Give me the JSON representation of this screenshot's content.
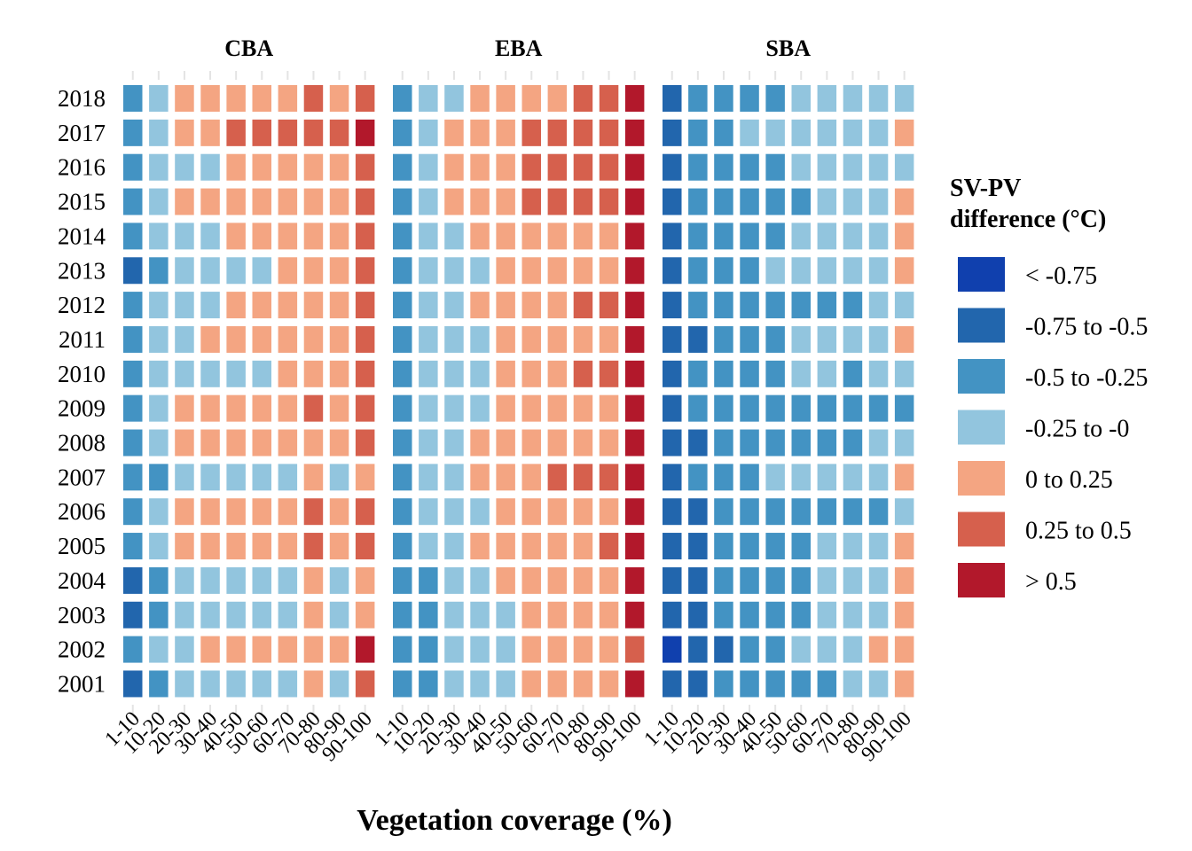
{
  "chart_data": {
    "type": "heatmap",
    "title": "",
    "xlabel": "Vegetation coverage (%)",
    "ylabel": "",
    "grid": false,
    "legend_placement": "right",
    "panels": [
      "CBA",
      "EBA",
      "SBA"
    ],
    "x_categories": [
      "1-10",
      "10-20",
      "20-30",
      "30-40",
      "40-50",
      "50-60",
      "60-70",
      "70-80",
      "80-90",
      "90-100"
    ],
    "y_categories": [
      "2018",
      "2017",
      "2016",
      "2015",
      "2014",
      "2013",
      "2012",
      "2011",
      "2010",
      "2009",
      "2008",
      "2007",
      "2006",
      "2005",
      "2004",
      "2003",
      "2002",
      "2001"
    ],
    "legend": {
      "title_line1": "SV-PV",
      "title_line2": "difference (°C)",
      "classes": [
        {
          "label": "< -0.75",
          "color": "#1040ae"
        },
        {
          "label": "-0.75 to -0.5",
          "color": "#2266ad"
        },
        {
          "label": "-0.5 to -0.25",
          "color": "#4393c3"
        },
        {
          "label": "-0.25 to -0",
          "color": "#92c5de"
        },
        {
          "label": "0 to 0.25",
          "color": "#f4a582"
        },
        {
          "label": "0.25 to 0.5",
          "color": "#d6604d"
        },
        {
          "label": "> 0.5",
          "color": "#b2182b"
        }
      ]
    },
    "value_encoding": "class index into legend.classes (0 = < -0.75 ... 6 = > 0.5)",
    "values": {
      "CBA": [
        [
          2,
          3,
          4,
          4,
          4,
          4,
          4,
          5,
          4,
          5
        ],
        [
          2,
          3,
          4,
          4,
          5,
          5,
          5,
          5,
          5,
          6
        ],
        [
          2,
          3,
          3,
          3,
          4,
          4,
          4,
          4,
          4,
          5
        ],
        [
          2,
          3,
          4,
          4,
          4,
          4,
          4,
          4,
          4,
          5
        ],
        [
          2,
          3,
          3,
          3,
          4,
          4,
          4,
          4,
          4,
          5
        ],
        [
          1,
          2,
          3,
          3,
          3,
          3,
          4,
          4,
          4,
          5
        ],
        [
          2,
          3,
          3,
          3,
          4,
          4,
          4,
          4,
          4,
          5
        ],
        [
          2,
          3,
          3,
          4,
          4,
          4,
          4,
          4,
          4,
          5
        ],
        [
          2,
          3,
          3,
          3,
          3,
          3,
          4,
          4,
          4,
          5
        ],
        [
          2,
          3,
          4,
          4,
          4,
          4,
          4,
          5,
          4,
          5
        ],
        [
          2,
          3,
          4,
          4,
          4,
          4,
          4,
          4,
          4,
          5
        ],
        [
          2,
          2,
          3,
          3,
          3,
          3,
          3,
          4,
          3,
          4
        ],
        [
          2,
          3,
          4,
          4,
          4,
          4,
          4,
          5,
          4,
          5
        ],
        [
          2,
          3,
          4,
          4,
          4,
          4,
          4,
          5,
          4,
          5
        ],
        [
          1,
          2,
          3,
          3,
          3,
          3,
          3,
          4,
          3,
          4
        ],
        [
          1,
          2,
          3,
          3,
          3,
          3,
          3,
          4,
          3,
          4
        ],
        [
          2,
          3,
          3,
          4,
          4,
          4,
          4,
          4,
          4,
          6
        ],
        [
          1,
          2,
          3,
          3,
          3,
          3,
          3,
          4,
          3,
          5
        ]
      ],
      "EBA": [
        [
          2,
          3,
          3,
          4,
          4,
          4,
          4,
          5,
          5,
          6
        ],
        [
          2,
          3,
          4,
          4,
          4,
          5,
          5,
          5,
          5,
          6
        ],
        [
          2,
          3,
          4,
          4,
          4,
          5,
          5,
          5,
          5,
          6
        ],
        [
          2,
          3,
          4,
          4,
          4,
          5,
          5,
          5,
          5,
          6
        ],
        [
          2,
          3,
          3,
          4,
          4,
          4,
          4,
          4,
          4,
          6
        ],
        [
          2,
          3,
          3,
          3,
          4,
          4,
          4,
          4,
          4,
          6
        ],
        [
          2,
          3,
          3,
          4,
          4,
          4,
          4,
          5,
          5,
          6
        ],
        [
          2,
          3,
          3,
          3,
          4,
          4,
          4,
          4,
          4,
          6
        ],
        [
          2,
          3,
          3,
          3,
          4,
          4,
          4,
          5,
          5,
          6
        ],
        [
          2,
          3,
          3,
          3,
          4,
          4,
          4,
          4,
          4,
          6
        ],
        [
          2,
          3,
          3,
          4,
          4,
          4,
          4,
          4,
          4,
          6
        ],
        [
          2,
          3,
          3,
          4,
          4,
          4,
          5,
          5,
          5,
          6
        ],
        [
          2,
          3,
          3,
          3,
          4,
          4,
          4,
          4,
          4,
          6
        ],
        [
          2,
          3,
          3,
          4,
          4,
          4,
          4,
          4,
          5,
          6
        ],
        [
          2,
          2,
          3,
          3,
          4,
          4,
          4,
          4,
          4,
          6
        ],
        [
          2,
          2,
          3,
          3,
          3,
          4,
          4,
          4,
          4,
          6
        ],
        [
          2,
          2,
          3,
          3,
          3,
          4,
          4,
          4,
          4,
          5
        ],
        [
          2,
          2,
          3,
          3,
          3,
          4,
          4,
          4,
          4,
          6
        ]
      ],
      "SBA": [
        [
          1,
          2,
          2,
          2,
          2,
          3,
          3,
          3,
          3,
          3
        ],
        [
          1,
          2,
          2,
          3,
          3,
          3,
          3,
          3,
          3,
          4
        ],
        [
          1,
          2,
          2,
          2,
          2,
          3,
          3,
          3,
          3,
          3
        ],
        [
          1,
          2,
          2,
          2,
          2,
          2,
          3,
          3,
          3,
          4
        ],
        [
          1,
          2,
          2,
          2,
          2,
          3,
          3,
          3,
          3,
          4
        ],
        [
          1,
          2,
          2,
          2,
          3,
          3,
          3,
          3,
          3,
          4
        ],
        [
          1,
          2,
          2,
          2,
          2,
          2,
          2,
          2,
          3,
          3
        ],
        [
          1,
          1,
          2,
          2,
          2,
          3,
          3,
          3,
          3,
          4
        ],
        [
          1,
          2,
          2,
          2,
          2,
          3,
          3,
          2,
          3,
          3
        ],
        [
          1,
          2,
          2,
          2,
          2,
          2,
          2,
          2,
          2,
          2
        ],
        [
          1,
          1,
          2,
          2,
          2,
          2,
          2,
          2,
          3,
          3
        ],
        [
          1,
          2,
          2,
          2,
          3,
          3,
          3,
          3,
          3,
          4
        ],
        [
          1,
          1,
          2,
          2,
          2,
          2,
          2,
          2,
          2,
          3
        ],
        [
          1,
          1,
          2,
          2,
          2,
          2,
          3,
          3,
          3,
          4
        ],
        [
          1,
          1,
          2,
          2,
          2,
          2,
          3,
          3,
          3,
          4
        ],
        [
          1,
          1,
          2,
          2,
          2,
          2,
          3,
          3,
          3,
          4
        ],
        [
          0,
          1,
          1,
          2,
          2,
          3,
          3,
          3,
          4,
          4
        ],
        [
          1,
          1,
          2,
          2,
          2,
          2,
          2,
          3,
          3,
          4
        ]
      ]
    }
  }
}
